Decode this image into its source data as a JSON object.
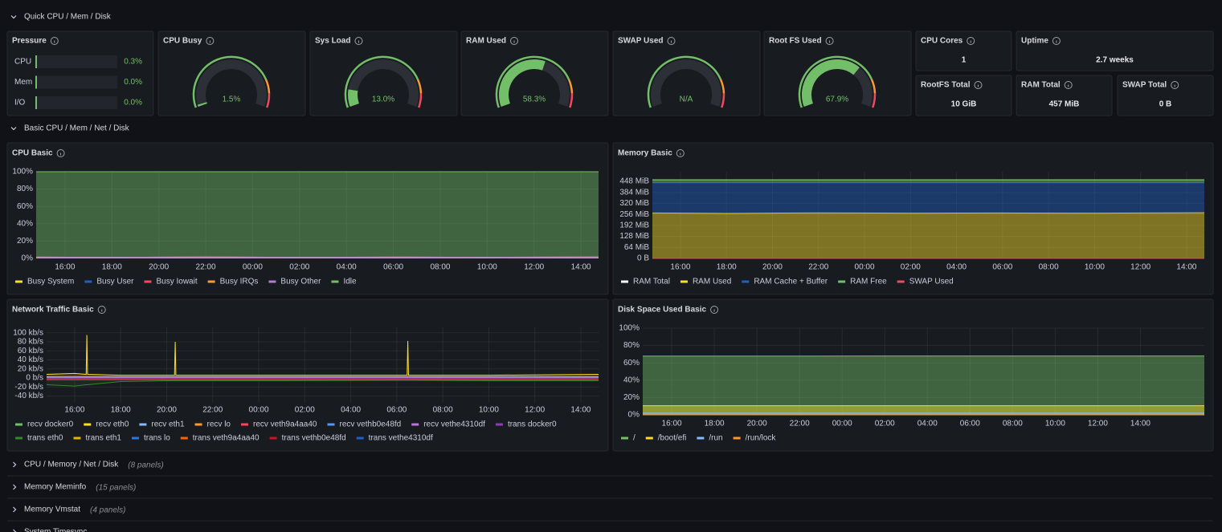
{
  "sections": [
    {
      "title": "Quick CPU / Mem / Disk"
    },
    {
      "title": "Basic CPU / Mem / Net / Disk"
    }
  ],
  "gauge_range": [
    0,
    100
  ],
  "thresholds": [
    {
      "value": 0,
      "color": "#73bf69"
    },
    {
      "value": 80,
      "color": "#ff9830"
    },
    {
      "value": 90,
      "color": "#f2495c"
    }
  ],
  "pressure": {
    "title": "Pressure",
    "rows": [
      {
        "label": "CPU",
        "value": 0.3,
        "value_label": "0.3%"
      },
      {
        "label": "Mem",
        "value": 0.0,
        "value_label": "0.0%"
      },
      {
        "label": "I/O",
        "value": 0.0,
        "value_label": "0.0%"
      }
    ]
  },
  "gauges": [
    {
      "title": "CPU Busy",
      "value": 1.5,
      "value_label": "1.5%"
    },
    {
      "title": "Sys Load",
      "value": 13.0,
      "value_label": "13.0%"
    },
    {
      "title": "RAM Used",
      "value": 58.3,
      "value_label": "58.3%"
    },
    {
      "title": "SWAP Used",
      "value": null,
      "value_label": "N/A"
    },
    {
      "title": "Root FS Used",
      "value": 67.9,
      "value_label": "67.9%"
    }
  ],
  "stats": [
    {
      "title": "CPU Cores",
      "value": 1
    },
    {
      "title": "Uptime",
      "value": "2.7 weeks"
    },
    {
      "title": "RootFS Total",
      "value": "10 GiB"
    },
    {
      "title": "RAM Total",
      "value": "457 MiB"
    },
    {
      "title": "SWAP Total",
      "value": "0 B"
    }
  ],
  "timeseries": [
    {
      "title": "CPU Basic",
      "stacked": true,
      "fill": 0.45,
      "x": [
        14.77,
        18,
        22,
        26,
        30,
        34,
        38.75
      ],
      "xlim": [
        14.77,
        38.75
      ],
      "xticks": [
        {
          "value": 16,
          "label": "16:00"
        },
        {
          "value": 18,
          "label": "18:00"
        },
        {
          "value": 20,
          "label": "20:00"
        },
        {
          "value": 22,
          "label": "22:00"
        },
        {
          "value": 24,
          "label": "00:00"
        },
        {
          "value": 26,
          "label": "02:00"
        },
        {
          "value": 28,
          "label": "04:00"
        },
        {
          "value": 30,
          "label": "06:00"
        },
        {
          "value": 32,
          "label": "08:00"
        },
        {
          "value": 34,
          "label": "10:00"
        },
        {
          "value": 36,
          "label": "12:00"
        },
        {
          "value": 38,
          "label": "14:00"
        }
      ],
      "ylim": [
        0,
        100
      ],
      "yticks": [
        {
          "value": 0,
          "label": "0%"
        },
        {
          "value": 20,
          "label": "20%"
        },
        {
          "value": 40,
          "label": "40%"
        },
        {
          "value": 60,
          "label": "60%"
        },
        {
          "value": 80,
          "label": "80%"
        },
        {
          "value": 100,
          "label": "100%"
        }
      ],
      "series": [
        {
          "name": "Busy System",
          "color": "#fade2a",
          "values": [
            0.6,
            0.5,
            0.6,
            0.5,
            0.6,
            0.5,
            0.6
          ]
        },
        {
          "name": "Busy User",
          "color": "#1f60c4",
          "values": [
            0.8,
            0.7,
            0.9,
            0.7,
            0.8,
            0.7,
            0.9
          ]
        },
        {
          "name": "Busy Iowait",
          "color": "#f2495c",
          "values": [
            0.1,
            0.1,
            0.1,
            0.1,
            0.1,
            0.1,
            0.1
          ]
        },
        {
          "name": "Busy IRQs",
          "color": "#ff9830",
          "values": [
            0,
            0,
            0,
            0,
            0,
            0,
            0
          ]
        },
        {
          "name": "Busy Other",
          "color": "#b877d9",
          "values": [
            0,
            0,
            0,
            0,
            0,
            0,
            0
          ]
        },
        {
          "name": "Idle",
          "color": "#73bf69",
          "values": [
            98.5,
            98.7,
            98.4,
            98.7,
            98.5,
            98.7,
            98.4
          ]
        }
      ]
    },
    {
      "title": "Memory Basic",
      "stacked": true,
      "fill": 0.45,
      "x": [
        14.78,
        18,
        22,
        26,
        30,
        34,
        38.77
      ],
      "xlim": [
        14.78,
        38.77
      ],
      "xticks": [
        {
          "value": 16,
          "label": "16:00"
        },
        {
          "value": 18,
          "label": "18:00"
        },
        {
          "value": 20,
          "label": "20:00"
        },
        {
          "value": 22,
          "label": "22:00"
        },
        {
          "value": 24,
          "label": "00:00"
        },
        {
          "value": 26,
          "label": "02:00"
        },
        {
          "value": 28,
          "label": "04:00"
        },
        {
          "value": 30,
          "label": "06:00"
        },
        {
          "value": 32,
          "label": "08:00"
        },
        {
          "value": 34,
          "label": "10:00"
        },
        {
          "value": 36,
          "label": "12:00"
        },
        {
          "value": 38,
          "label": "14:00"
        }
      ],
      "ylim": [
        0,
        504
      ],
      "yticks": [
        {
          "value": 0,
          "label": "0 B"
        },
        {
          "value": 64,
          "label": "64 MiB"
        },
        {
          "value": 128,
          "label": "128 MiB"
        },
        {
          "value": 192,
          "label": "192 MiB"
        },
        {
          "value": 256,
          "label": "256 MiB"
        },
        {
          "value": 320,
          "label": "320 MiB"
        },
        {
          "value": 384,
          "label": "384 MiB"
        },
        {
          "value": 448,
          "label": "448 MiB"
        }
      ],
      "series": [
        {
          "name": "RAM Total",
          "color": "#ffffff",
          "stack": false,
          "values": [
            457,
            457,
            457,
            457,
            457,
            457,
            457
          ]
        },
        {
          "name": "RAM Used",
          "color": "#fade2a",
          "values": [
            264,
            262,
            265,
            263,
            264,
            263,
            266
          ]
        },
        {
          "name": "RAM Cache + Buffer",
          "color": "#1f60c4",
          "values": [
            175,
            177,
            174,
            176,
            175,
            176,
            173
          ]
        },
        {
          "name": "RAM Free",
          "color": "#73bf69",
          "values": [
            18,
            18,
            18,
            18,
            18,
            18,
            18
          ]
        },
        {
          "name": "SWAP Used",
          "color": "#f2495c",
          "stack": false,
          "values": [
            0,
            0,
            0,
            0,
            0,
            0,
            0
          ]
        }
      ]
    },
    {
      "title": "Network Traffic Basic",
      "stacked": false,
      "fill": 0.15,
      "x": [
        14.78,
        16,
        16.5,
        16.53,
        16.56,
        18,
        20.34,
        20.37,
        20.4,
        25,
        30.45,
        30.48,
        30.51,
        34,
        38.77
      ],
      "xlim": [
        14.78,
        38.77
      ],
      "xticks": [
        {
          "value": 16,
          "label": "16:00"
        },
        {
          "value": 18,
          "label": "18:00"
        },
        {
          "value": 20,
          "label": "20:00"
        },
        {
          "value": 22,
          "label": "22:00"
        },
        {
          "value": 24,
          "label": "00:00"
        },
        {
          "value": 26,
          "label": "02:00"
        },
        {
          "value": 28,
          "label": "04:00"
        },
        {
          "value": 30,
          "label": "06:00"
        },
        {
          "value": 32,
          "label": "08:00"
        },
        {
          "value": 34,
          "label": "10:00"
        },
        {
          "value": 36,
          "label": "12:00"
        },
        {
          "value": 38,
          "label": "14:00"
        }
      ],
      "ylim": [
        -55,
        112
      ],
      "yticks": [
        {
          "value": -40,
          "label": "-40 kb/s"
        },
        {
          "value": -20,
          "label": "-20 kb/s"
        },
        {
          "value": 0,
          "label": "0 b/s"
        },
        {
          "value": 20,
          "label": "20 kb/s"
        },
        {
          "value": 40,
          "label": "40 kb/s"
        },
        {
          "value": 60,
          "label": "60 kb/s"
        },
        {
          "value": 80,
          "label": "80 kb/s"
        },
        {
          "value": 100,
          "label": "100 kb/s"
        }
      ],
      "series": [
        {
          "name": "recv docker0",
          "color": "#73bf69",
          "values": [
            2,
            2,
            2,
            2,
            2,
            2,
            2,
            2,
            2,
            2,
            2,
            2,
            2,
            2,
            2
          ]
        },
        {
          "name": "recv eth0",
          "color": "#fade2a",
          "values": [
            8,
            10,
            8,
            95,
            8,
            6,
            6,
            80,
            6,
            6,
            6,
            82,
            6,
            6,
            8
          ]
        },
        {
          "name": "recv eth1",
          "color": "#8ab8ff",
          "values": [
            1,
            1,
            1,
            1,
            1,
            1,
            1,
            1,
            1,
            1,
            1,
            1,
            1,
            1,
            1
          ]
        },
        {
          "name": "recv lo",
          "color": "#ff9830",
          "values": [
            3,
            3,
            3,
            3,
            3,
            3,
            3,
            3,
            3,
            3,
            3,
            3,
            3,
            3,
            3
          ]
        },
        {
          "name": "recv veth9a4aa40",
          "color": "#f2495c",
          "values": [
            0.5,
            0.5,
            0.5,
            0.5,
            0.5,
            0.5,
            0.5,
            0.5,
            0.5,
            0.5,
            0.5,
            0.5,
            0.5,
            0.5,
            0.5
          ]
        },
        {
          "name": "recv vethb0e48fd",
          "color": "#5794f2",
          "values": [
            0.5,
            0.5,
            0.5,
            0.5,
            0.5,
            0.5,
            0.5,
            0.5,
            0.5,
            0.5,
            0.5,
            0.5,
            0.5,
            0.5,
            0.5
          ]
        },
        {
          "name": "recv vethe4310df",
          "color": "#b877d9",
          "values": [
            0.5,
            0.5,
            0.5,
            0.5,
            0.5,
            0.5,
            0.5,
            0.5,
            0.5,
            0.5,
            0.5,
            0.5,
            0.5,
            0.5,
            0.5
          ]
        },
        {
          "name": "trans docker0",
          "color": "#8f3bb8",
          "values": [
            -2,
            -2,
            -2,
            -2,
            -2,
            -2,
            -2,
            -2,
            -2,
            -2,
            -2,
            -2,
            -2,
            -2,
            -2
          ]
        },
        {
          "name": "trans eth0",
          "color": "#37872d",
          "values": [
            -15,
            -18,
            -15,
            -15,
            -15,
            -8,
            -6,
            -6,
            -6,
            -6,
            -5,
            -5,
            -5,
            -6,
            -6
          ]
        },
        {
          "name": "trans eth1",
          "color": "#e0b400",
          "values": [
            -1,
            -1,
            -1,
            -1,
            -1,
            -1,
            -1,
            -1,
            -1,
            -1,
            -1,
            -1,
            -1,
            -1,
            -1
          ]
        },
        {
          "name": "trans lo",
          "color": "#3274d9",
          "values": [
            -3,
            -3,
            -3,
            -3,
            -3,
            -3,
            -3,
            -3,
            -3,
            -3,
            -3,
            -3,
            -3,
            -3,
            -3
          ]
        },
        {
          "name": "trans veth9a4aa40",
          "color": "#fa6400",
          "values": [
            -4,
            -4,
            -4,
            -4,
            -4,
            -4,
            -4,
            -4,
            -4,
            -4,
            -4,
            -4,
            -4,
            -4,
            -4
          ]
        },
        {
          "name": "trans vethb0e48fd",
          "color": "#c4162a",
          "values": [
            -3,
            -3,
            -3,
            -3,
            -3,
            -3,
            -3,
            -3,
            -3,
            -3,
            -3,
            -3,
            -3,
            -3,
            -3
          ]
        },
        {
          "name": "trans vethe4310df",
          "color": "#1f60c4",
          "values": [
            -0.5,
            -0.5,
            -0.5,
            -0.5,
            -0.5,
            -0.5,
            -0.5,
            -0.5,
            -0.5,
            -0.5,
            -0.5,
            -0.5,
            -0.5,
            -0.5,
            -0.5
          ]
        }
      ]
    },
    {
      "title": "Disk Space Used Basic",
      "stacked": false,
      "fill": 0.45,
      "x": [
        14.64,
        18,
        22,
        26,
        30,
        34,
        41.0
      ],
      "xlim": [
        14.64,
        41.0
      ],
      "xticks": [
        {
          "value": 16,
          "label": "16:00"
        },
        {
          "value": 18,
          "label": "18:00"
        },
        {
          "value": 20,
          "label": "20:00"
        },
        {
          "value": 22,
          "label": "22:00"
        },
        {
          "value": 24,
          "label": "00:00"
        },
        {
          "value": 26,
          "label": "02:00"
        },
        {
          "value": 28,
          "label": "04:00"
        },
        {
          "value": 30,
          "label": "06:00"
        },
        {
          "value": 32,
          "label": "08:00"
        },
        {
          "value": 34,
          "label": "10:00"
        },
        {
          "value": 36,
          "label": "12:00"
        },
        {
          "value": 38,
          "label": "14:00"
        }
      ],
      "ylim": [
        0,
        100
      ],
      "yticks": [
        {
          "value": 0,
          "label": "0%"
        },
        {
          "value": 20,
          "label": "20%"
        },
        {
          "value": 40,
          "label": "40%"
        },
        {
          "value": 60,
          "label": "60%"
        },
        {
          "value": 80,
          "label": "80%"
        },
        {
          "value": 100,
          "label": "100%"
        }
      ],
      "series": [
        {
          "name": "/",
          "color": "#73bf69",
          "values": [
            67.8,
            67.8,
            67.8,
            67.9,
            67.9,
            67.9,
            67.9
          ]
        },
        {
          "name": "/boot/efi",
          "color": "#fade2a",
          "values": [
            10.5,
            10.5,
            10.5,
            10.5,
            10.5,
            10.5,
            10.5
          ]
        },
        {
          "name": "/run",
          "color": "#8ab8ff",
          "values": [
            2,
            2,
            2,
            2,
            2,
            2,
            2
          ]
        },
        {
          "name": "/run/lock",
          "color": "#ff9830",
          "values": [
            0,
            0,
            0,
            0,
            0,
            0,
            0
          ]
        }
      ]
    }
  ],
  "collapsed_rows": [
    {
      "title": "CPU / Memory / Net / Disk",
      "note": "(8 panels)"
    },
    {
      "title": "Memory Meminfo",
      "note": "(15 panels)"
    },
    {
      "title": "Memory Vmstat",
      "note": "(4 panels)"
    },
    {
      "title": "System Timesync"
    }
  ]
}
